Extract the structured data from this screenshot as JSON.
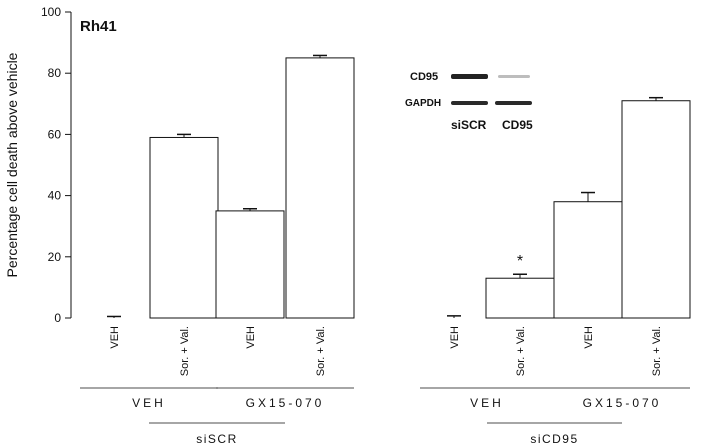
{
  "chart_data": {
    "type": "bar",
    "panel_label": "Rh41",
    "ylabel": "Percentage cell death above vehicle",
    "ylim": [
      0,
      100
    ],
    "yticks": [
      0,
      20,
      40,
      60,
      80,
      100
    ],
    "grid": false,
    "categories": [
      "VEH",
      "Sor. + Val.",
      "VEH",
      "Sor. + Val.",
      "VEH",
      "Sor. + Val.",
      "VEH",
      "Sor. + Val."
    ],
    "values": [
      0,
      59,
      35,
      85,
      0,
      13,
      38,
      71
    ],
    "errors": [
      0.5,
      1.0,
      0.7,
      0.8,
      0.7,
      1.3,
      3.0,
      1.0
    ],
    "significance": [
      "",
      "",
      "",
      "",
      "",
      "*",
      "",
      ""
    ],
    "treatment_groups": [
      {
        "label": "VEH",
        "bars": [
          0,
          1
        ]
      },
      {
        "label": "GX15-070",
        "bars": [
          2,
          3
        ]
      },
      {
        "label": "VEH",
        "bars": [
          4,
          5
        ]
      },
      {
        "label": "GX15-070",
        "bars": [
          6,
          7
        ]
      }
    ],
    "sirna_groups": [
      {
        "label": "siSCR",
        "bars": [
          0,
          3
        ]
      },
      {
        "label": "siCD95",
        "bars": [
          4,
          7
        ]
      }
    ],
    "inset": {
      "rows": [
        "CD95",
        "GAPDH"
      ],
      "lanes": [
        "siSCR",
        "CD95"
      ]
    }
  }
}
